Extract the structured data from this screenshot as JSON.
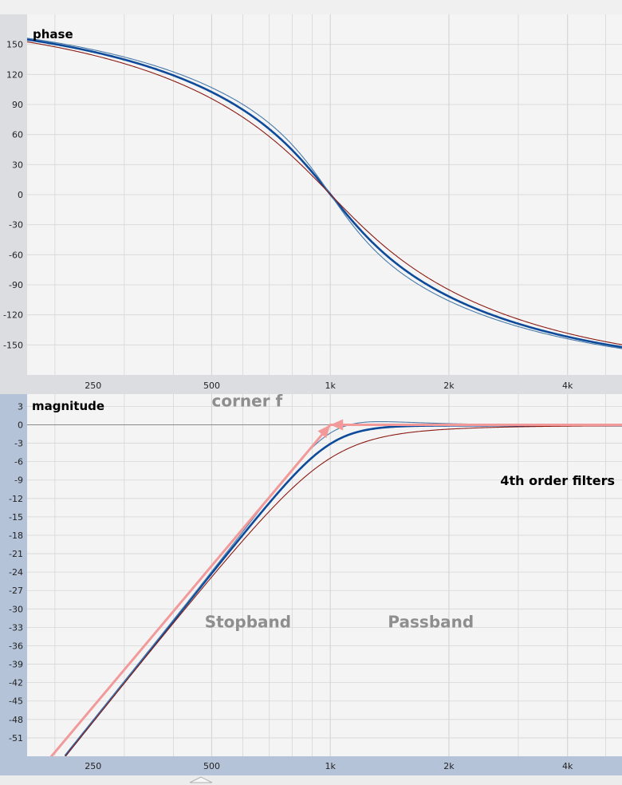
{
  "colors": {
    "page_bg": "#f3f3f3",
    "plot_bg": "#f4f4f4",
    "grid": "#d6d6d6",
    "phase_axis_bg": "#dcdde1",
    "magnitude_axis_bg": "#b5c3d9",
    "zero_line": "#8a8a8a",
    "bold_series": "#0d4a9a",
    "thin_blue_series": "#4a7aa8",
    "red_series": "#8b1a12",
    "arrow": "#f29a9a",
    "annotation_text": "#8e8e8e",
    "plot_title": "#000000"
  },
  "chart_data": [
    {
      "type": "line",
      "title": "phase",
      "x_scale": "log",
      "xlim": [
        170,
        5500
      ],
      "ylim": [
        -180,
        180
      ],
      "x_ticks": [
        250,
        500,
        1000,
        2000,
        4000
      ],
      "x_tick_labels": [
        "250",
        "500",
        "1k",
        "2k",
        "4k"
      ],
      "y_ticks": [
        150,
        120,
        90,
        60,
        30,
        0,
        -30,
        -60,
        -90,
        -120,
        -150
      ],
      "y_tick_labels": [
        "150",
        "120",
        "90",
        "60",
        "30",
        "0",
        "-30",
        "-60",
        "-90",
        "-120",
        "-150"
      ],
      "grid": true,
      "corner_frequency": 1000,
      "series": [
        {
          "style": "bold-blue",
          "filter_q": 1.3066,
          "phase_offset": -179.6
        },
        {
          "style": "thin-blue",
          "filter_q": 1.6,
          "phase_offset": -179.6
        },
        {
          "style": "thin-red",
          "filter_q": 1.0,
          "phase_offset": -179.6
        }
      ]
    },
    {
      "type": "line",
      "title": "magnitude",
      "x_scale": "log",
      "xlim": [
        170,
        5500
      ],
      "ylim": [
        -54,
        5
      ],
      "x_ticks": [
        250,
        500,
        1000,
        2000,
        4000
      ],
      "x_tick_labels": [
        "250",
        "500",
        "1k",
        "2k",
        "4k"
      ],
      "y_ticks": [
        3,
        0,
        -3,
        -6,
        -9,
        -12,
        -15,
        -18,
        -21,
        -24,
        -27,
        -30,
        -33,
        -36,
        -39,
        -42,
        -45,
        -48,
        -51
      ],
      "y_tick_labels": [
        "3",
        "0",
        "-3",
        "-6",
        "-9",
        "-12",
        "-15",
        "-18",
        "-21",
        "-24",
        "-27",
        "-30",
        "-33",
        "-36",
        "-39",
        "-42",
        "-45",
        "-48",
        "-51"
      ],
      "grid": true,
      "corner_frequency": 1000,
      "series": [
        {
          "style": "bold-blue",
          "filter_q": 1.3066,
          "magnitude_offset": -0.1
        },
        {
          "style": "thin-blue",
          "filter_q": 1.6,
          "magnitude_offset": -0.1
        },
        {
          "style": "thin-red",
          "filter_q": 1.0,
          "magnitude_offset": -0.1
        }
      ],
      "annotations": [
        {
          "id": "corner",
          "text": "corner f",
          "x": 500,
          "y": 3
        },
        {
          "id": "stopband",
          "text": "Stopband",
          "x": 480,
          "y": -33
        },
        {
          "id": "passband",
          "text": "Passband",
          "x": 1400,
          "y": -33
        },
        {
          "id": "order",
          "text": "4th order filters",
          "x": 2700,
          "y": -9.8
        }
      ],
      "arrows": [
        {
          "from": [
            196,
            -54
          ],
          "to": [
            1000,
            0
          ]
        },
        {
          "from": [
            5500,
            0
          ],
          "to": [
            1000,
            0
          ]
        }
      ]
    }
  ]
}
